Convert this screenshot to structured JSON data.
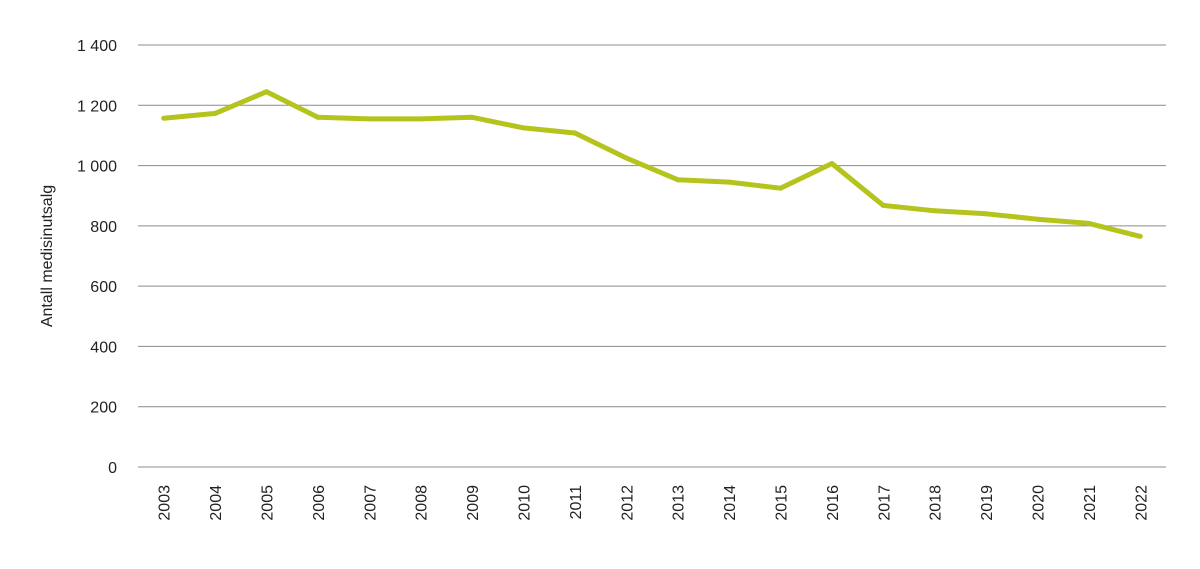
{
  "chart_data": {
    "type": "line",
    "title": "",
    "xlabel": "",
    "ylabel": "Antall medisinutsalg",
    "ylim": [
      0,
      1400
    ],
    "yticks": [
      0,
      200,
      400,
      600,
      800,
      1000,
      1200,
      1400
    ],
    "ytick_labels": [
      "0",
      "200",
      "400",
      "600",
      "800",
      "1 000",
      "1 200",
      "1 400"
    ],
    "grid": true,
    "legend": "none",
    "categories": [
      "2003",
      "2004",
      "2005",
      "2006",
      "2007",
      "2008",
      "2009",
      "2010",
      "2011",
      "2012",
      "2013",
      "2014",
      "2015",
      "2016",
      "2017",
      "2018",
      "2019",
      "2020",
      "2021",
      "2022"
    ],
    "series": [
      {
        "color": "#b5c41d",
        "values": [
          1157,
          1173,
          1245,
          1160,
          1155,
          1155,
          1160,
          1125,
          1108,
          1025,
          953,
          945,
          925,
          1007,
          868,
          850,
          840,
          822,
          808,
          765
        ]
      }
    ]
  }
}
